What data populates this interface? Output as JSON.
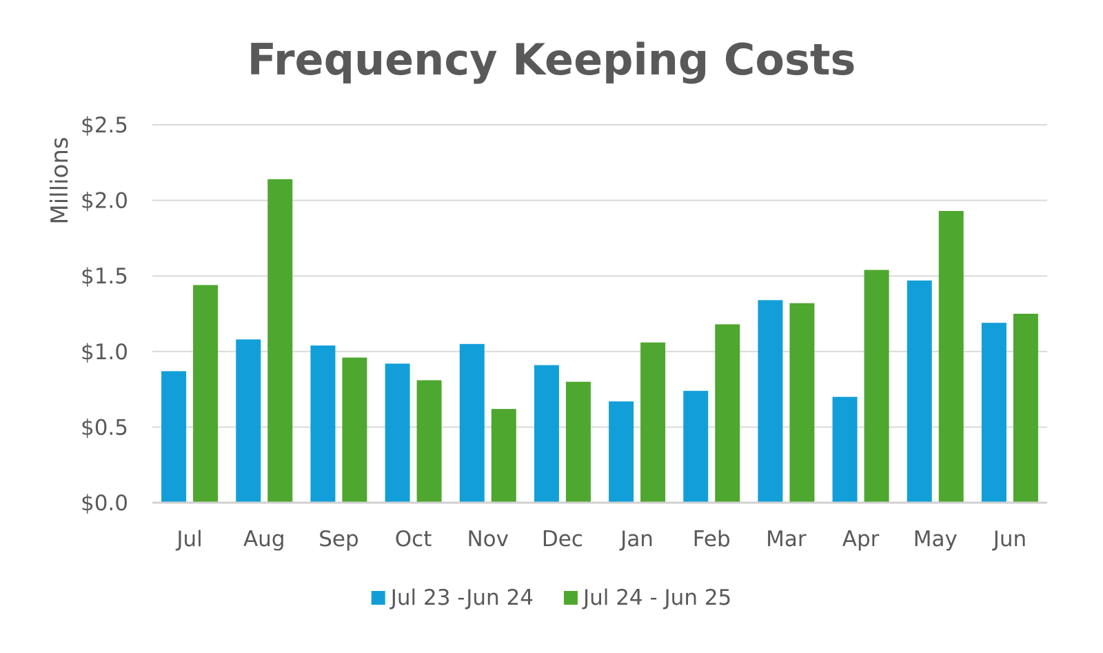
{
  "chart_data": {
    "type": "bar",
    "title": "Frequency Keeping Costs",
    "ylabel": "Millions",
    "xlabel": "",
    "ylim": [
      0,
      2.5
    ],
    "yticks": [
      0,
      0.5,
      1.0,
      1.5,
      2.0,
      2.5
    ],
    "ytick_labels": [
      "$0.0",
      "$0.5",
      "$1.0",
      "$1.5",
      "$2.0",
      "$2.5"
    ],
    "grid": true,
    "legend_position": "bottom",
    "categories": [
      "Jul",
      "Aug",
      "Sep",
      "Oct",
      "Nov",
      "Dec",
      "Jan",
      "Feb",
      "Mar",
      "Apr",
      "May",
      "Jun"
    ],
    "series": [
      {
        "name": "Jul 23 -Jun 24",
        "color": "#129fd9",
        "values": [
          0.87,
          1.08,
          1.04,
          0.92,
          1.05,
          0.91,
          0.67,
          0.74,
          1.34,
          0.7,
          1.47,
          1.19
        ]
      },
      {
        "name": "Jul 24 - Jun 25",
        "color": "#4ea72e",
        "values": [
          1.44,
          2.14,
          0.96,
          0.81,
          0.62,
          0.8,
          1.06,
          1.18,
          1.32,
          1.54,
          1.93,
          1.25
        ]
      }
    ]
  }
}
